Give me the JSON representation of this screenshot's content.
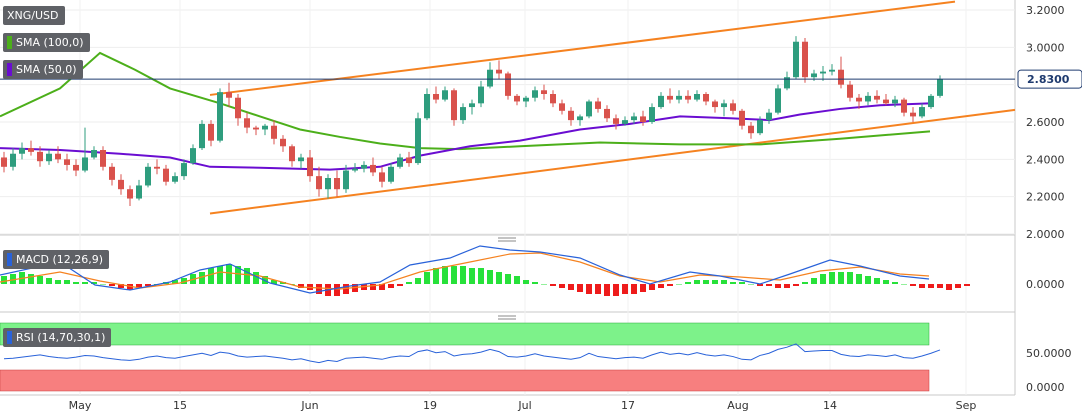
{
  "chart_data": [
    {
      "type": "candlestick",
      "title": "XNG/USD",
      "indicators": [
        {
          "name": "SMA (100,0)",
          "color": "#4caf1a"
        },
        {
          "name": "SMA (50,0)",
          "color": "#6a0dd1"
        }
      ],
      "last_price": "2.8300",
      "y_ticks": [
        "3.2000",
        "3.0000",
        "2.8000",
        "2.6000",
        "2.4000",
        "2.2000",
        "2.0000"
      ],
      "ylim": [
        2.0,
        3.2
      ],
      "x_ticks": [
        "May",
        "15",
        "Jun",
        "19",
        "Jul",
        "17",
        "Aug",
        "14",
        "Sep"
      ],
      "candles": [
        [
          2.41,
          2.44,
          2.33,
          2.36
        ],
        [
          2.36,
          2.46,
          2.34,
          2.43
        ],
        [
          2.43,
          2.49,
          2.4,
          2.46
        ],
        [
          2.46,
          2.5,
          2.42,
          2.44
        ],
        [
          2.44,
          2.47,
          2.36,
          2.39
        ],
        [
          2.39,
          2.45,
          2.37,
          2.43
        ],
        [
          2.43,
          2.47,
          2.38,
          2.4
        ],
        [
          2.4,
          2.43,
          2.34,
          2.37
        ],
        [
          2.37,
          2.4,
          2.31,
          2.34
        ],
        [
          2.34,
          2.57,
          2.33,
          2.41
        ],
        [
          2.41,
          2.47,
          2.4,
          2.45
        ],
        [
          2.45,
          2.47,
          2.34,
          2.36
        ],
        [
          2.36,
          2.38,
          2.26,
          2.29
        ],
        [
          2.29,
          2.32,
          2.21,
          2.24
        ],
        [
          2.24,
          2.26,
          2.15,
          2.19
        ],
        [
          2.19,
          2.29,
          2.18,
          2.26
        ],
        [
          2.26,
          2.38,
          2.25,
          2.36
        ],
        [
          2.36,
          2.4,
          2.32,
          2.35
        ],
        [
          2.35,
          2.37,
          2.26,
          2.28
        ],
        [
          2.28,
          2.33,
          2.27,
          2.31
        ],
        [
          2.31,
          2.4,
          2.29,
          2.38
        ],
        [
          2.38,
          2.48,
          2.37,
          2.46
        ],
        [
          2.46,
          2.61,
          2.45,
          2.59
        ],
        [
          2.59,
          2.61,
          2.47,
          2.5
        ],
        [
          2.5,
          2.78,
          2.49,
          2.76
        ],
        [
          2.76,
          2.81,
          2.68,
          2.73
        ],
        [
          2.73,
          2.75,
          2.58,
          2.62
        ],
        [
          2.62,
          2.65,
          2.54,
          2.57
        ],
        [
          2.57,
          2.58,
          2.53,
          2.56
        ],
        [
          2.56,
          2.59,
          2.53,
          2.58
        ],
        [
          2.58,
          2.61,
          2.48,
          2.51
        ],
        [
          2.51,
          2.53,
          2.44,
          2.47
        ],
        [
          2.47,
          2.48,
          2.36,
          2.39
        ],
        [
          2.39,
          2.43,
          2.35,
          2.41
        ],
        [
          2.41,
          2.45,
          2.28,
          2.31
        ],
        [
          2.31,
          2.36,
          2.2,
          2.24
        ],
        [
          2.24,
          2.32,
          2.19,
          2.3
        ],
        [
          2.3,
          2.34,
          2.2,
          2.24
        ],
        [
          2.24,
          2.37,
          2.22,
          2.34
        ],
        [
          2.34,
          2.38,
          2.33,
          2.35
        ],
        [
          2.35,
          2.39,
          2.33,
          2.37
        ],
        [
          2.37,
          2.41,
          2.31,
          2.33
        ],
        [
          2.33,
          2.36,
          2.25,
          2.28
        ],
        [
          2.28,
          2.38,
          2.27,
          2.36
        ],
        [
          2.36,
          2.43,
          2.35,
          2.41
        ],
        [
          2.41,
          2.44,
          2.36,
          2.38
        ],
        [
          2.38,
          2.65,
          2.37,
          2.62
        ],
        [
          2.62,
          2.78,
          2.61,
          2.75
        ],
        [
          2.75,
          2.79,
          2.7,
          2.72
        ],
        [
          2.72,
          2.79,
          2.71,
          2.77
        ],
        [
          2.77,
          2.78,
          2.58,
          2.61
        ],
        [
          2.61,
          2.7,
          2.59,
          2.68
        ],
        [
          2.68,
          2.72,
          2.64,
          2.7
        ],
        [
          2.7,
          2.82,
          2.68,
          2.79
        ],
        [
          2.79,
          2.92,
          2.78,
          2.88
        ],
        [
          2.88,
          2.93,
          2.83,
          2.86
        ],
        [
          2.86,
          2.87,
          2.72,
          2.74
        ],
        [
          2.74,
          2.75,
          2.69,
          2.71
        ],
        [
          2.71,
          2.74,
          2.68,
          2.73
        ],
        [
          2.73,
          2.79,
          2.71,
          2.77
        ],
        [
          2.77,
          2.8,
          2.72,
          2.75
        ],
        [
          2.75,
          2.77,
          2.68,
          2.7
        ],
        [
          2.7,
          2.72,
          2.64,
          2.66
        ],
        [
          2.66,
          2.68,
          2.58,
          2.61
        ],
        [
          2.61,
          2.64,
          2.58,
          2.63
        ],
        [
          2.63,
          2.72,
          2.62,
          2.71
        ],
        [
          2.71,
          2.73,
          2.65,
          2.67
        ],
        [
          2.67,
          2.69,
          2.6,
          2.62
        ],
        [
          2.62,
          2.64,
          2.56,
          2.59
        ],
        [
          2.59,
          2.63,
          2.58,
          2.61
        ],
        [
          2.61,
          2.65,
          2.59,
          2.63
        ],
        [
          2.63,
          2.66,
          2.58,
          2.6
        ],
        [
          2.6,
          2.7,
          2.59,
          2.68
        ],
        [
          2.68,
          2.76,
          2.67,
          2.74
        ],
        [
          2.74,
          2.78,
          2.7,
          2.72
        ],
        [
          2.72,
          2.77,
          2.7,
          2.74
        ],
        [
          2.74,
          2.77,
          2.7,
          2.72
        ],
        [
          2.72,
          2.77,
          2.71,
          2.75
        ],
        [
          2.75,
          2.76,
          2.69,
          2.71
        ],
        [
          2.71,
          2.72,
          2.65,
          2.68
        ],
        [
          2.68,
          2.72,
          2.63,
          2.7
        ],
        [
          2.7,
          2.72,
          2.64,
          2.66
        ],
        [
          2.66,
          2.67,
          2.56,
          2.58
        ],
        [
          2.58,
          2.6,
          2.51,
          2.54
        ],
        [
          2.54,
          2.63,
          2.53,
          2.61
        ],
        [
          2.61,
          2.67,
          2.59,
          2.65
        ],
        [
          2.65,
          2.8,
          2.64,
          2.78
        ],
        [
          2.78,
          2.87,
          2.77,
          2.84
        ],
        [
          2.84,
          3.06,
          2.83,
          3.03
        ],
        [
          3.03,
          3.05,
          2.81,
          2.84
        ],
        [
          2.84,
          2.88,
          2.82,
          2.86
        ],
        [
          2.86,
          2.9,
          2.82,
          2.87
        ],
        [
          2.87,
          2.91,
          2.85,
          2.88
        ],
        [
          2.88,
          2.95,
          2.78,
          2.8
        ],
        [
          2.8,
          2.82,
          2.71,
          2.73
        ],
        [
          2.73,
          2.75,
          2.67,
          2.71
        ],
        [
          2.71,
          2.76,
          2.69,
          2.74
        ],
        [
          2.74,
          2.77,
          2.7,
          2.72
        ],
        [
          2.72,
          2.75,
          2.69,
          2.7
        ],
        [
          2.7,
          2.74,
          2.68,
          2.72
        ],
        [
          2.72,
          2.73,
          2.63,
          2.65
        ],
        [
          2.65,
          2.68,
          2.6,
          2.63
        ],
        [
          2.63,
          2.7,
          2.62,
          2.68
        ],
        [
          2.68,
          2.75,
          2.67,
          2.74
        ],
        [
          2.74,
          2.85,
          2.73,
          2.83
        ]
      ]
    },
    {
      "type": "line",
      "title": "MACD (12,26,9)",
      "zero_label": "0.0000",
      "histogram": [
        4,
        5,
        6,
        5,
        4,
        3,
        2,
        2,
        1,
        1,
        1,
        0,
        -1,
        -2,
        -3,
        -2,
        -1,
        0,
        1,
        2,
        3,
        5,
        6,
        8,
        9,
        10,
        9,
        8,
        6,
        4,
        2,
        1,
        0,
        -2,
        -3,
        -5,
        -6,
        -6,
        -5,
        -4,
        -3,
        -3,
        -3,
        -2,
        -1,
        1,
        3,
        6,
        8,
        9,
        9,
        9,
        8,
        8,
        7,
        6,
        5,
        4,
        2,
        1,
        0,
        -1,
        -2,
        -3,
        -4,
        -5,
        -5,
        -6,
        -6,
        -5,
        -5,
        -4,
        -3,
        -2,
        -1,
        0,
        1,
        2,
        2,
        2,
        2,
        1,
        1,
        0,
        -1,
        -1,
        -2,
        -2,
        -1,
        1,
        3,
        5,
        6,
        6,
        6,
        5,
        4,
        3,
        2,
        1,
        0,
        -1,
        -2,
        -2,
        -2,
        -3,
        -2,
        -1
      ]
    },
    {
      "type": "line",
      "title": "RSI (14,70,30,1)",
      "y_ticks": [
        "50.0000",
        "0.0000"
      ],
      "ylim": [
        0,
        100
      ],
      "values": [
        45,
        46,
        48,
        50,
        52,
        49,
        47,
        46,
        48,
        51,
        50,
        47,
        45,
        43,
        42,
        44,
        48,
        50,
        47,
        46,
        49,
        52,
        55,
        51,
        57,
        55,
        50,
        48,
        49,
        50,
        48,
        46,
        43,
        45,
        41,
        38,
        42,
        40,
        46,
        47,
        48,
        46,
        44,
        48,
        50,
        49,
        58,
        61,
        56,
        58,
        50,
        53,
        54,
        57,
        62,
        58,
        49,
        48,
        50,
        54,
        50,
        48,
        46,
        44,
        47,
        55,
        49,
        47,
        45,
        47,
        48,
        46,
        52,
        57,
        53,
        55,
        52,
        56,
        52,
        50,
        52,
        49,
        44,
        43,
        51,
        55,
        62,
        66,
        72,
        58,
        59,
        60,
        60,
        53,
        50,
        49,
        52,
        51,
        49,
        52,
        47,
        46,
        50,
        55,
        61
      ]
    }
  ],
  "legend": {
    "symbol": "XNG/USD",
    "sma100": "SMA (100,0)",
    "sma50": "SMA (50,0)",
    "macd": "MACD (12,26,9)",
    "rsi": "RSI (14,70,30,1)"
  },
  "colors": {
    "up": "#2e9d7e",
    "down": "#d9524c",
    "sma100": "#4caf1a",
    "sma50": "#6a0dd1",
    "channel": "#f58220",
    "macd_line": "#2962d9",
    "signal_line": "#f58220",
    "hist_up": "#27e13a",
    "hist_down": "#ee1b1b",
    "rsi_line": "#2962d9",
    "rsi_over": "#7df28a",
    "rsi_under": "#f77f7f"
  }
}
